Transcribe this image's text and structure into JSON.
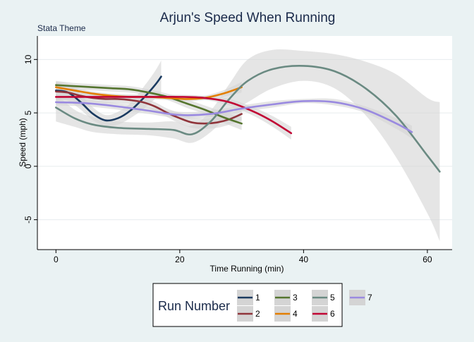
{
  "chart_data": {
    "type": "line",
    "title": "Arjun's Speed When Running",
    "subtitle": "Stata Theme",
    "xlabel": "Time Running (min)",
    "ylabel": "Speed (mph)",
    "xlim": [
      -3,
      64
    ],
    "ylim": [
      -7.8,
      12.2
    ],
    "xticks": [
      0,
      20,
      40,
      60
    ],
    "yticks": [
      -5,
      0,
      5,
      10
    ],
    "x_tick_labels": [
      "0",
      "20",
      "40",
      "60"
    ],
    "y_tick_labels": [
      "-5",
      "0",
      "5",
      "10"
    ],
    "grid": true,
    "legend": {
      "title": "Run Number",
      "placement": "bottom",
      "entries": [
        "1",
        "2",
        "3",
        "4",
        "5",
        "6",
        "7"
      ]
    },
    "colors": {
      "background": "#EAF2F3",
      "plot_background": "#FFFFFF",
      "band": "#D4D4D4",
      "gridline": "#E6ECEE",
      "title": "#1A2A4A"
    },
    "series": [
      {
        "name": "1",
        "color": "#1A3A60",
        "x": [
          0,
          2,
          4,
          6,
          8,
          10,
          12,
          14,
          16,
          17
        ],
        "y": [
          7.1,
          6.9,
          6.0,
          4.9,
          4.3,
          4.5,
          5.2,
          6.3,
          7.6,
          8.4
        ],
        "lower": [
          6.3,
          6.1,
          5.3,
          4.3,
          3.8,
          3.9,
          4.5,
          5.3,
          6.3,
          6.9
        ],
        "upper": [
          7.9,
          7.7,
          6.7,
          5.5,
          4.8,
          5.1,
          5.9,
          7.3,
          8.9,
          9.9
        ]
      },
      {
        "name": "2",
        "color": "#90353B",
        "x": [
          0,
          2,
          4,
          6,
          8,
          10,
          12,
          14,
          16,
          18,
          20,
          22,
          24,
          26,
          28,
          30
        ],
        "y": [
          7.0,
          6.9,
          6.6,
          6.4,
          6.3,
          6.3,
          6.2,
          6.0,
          5.6,
          5.0,
          4.5,
          4.1,
          4.0,
          4.1,
          4.4,
          4.9
        ],
        "lower": [
          6.2,
          6.3,
          6.1,
          6.0,
          5.9,
          5.9,
          5.8,
          5.6,
          5.2,
          4.6,
          4.0,
          3.6,
          3.5,
          3.6,
          3.9,
          4.3
        ],
        "upper": [
          7.8,
          7.5,
          7.1,
          6.8,
          6.7,
          6.7,
          6.6,
          6.4,
          6.0,
          5.4,
          5.0,
          4.6,
          4.5,
          4.6,
          4.9,
          5.5
        ]
      },
      {
        "name": "3",
        "color": "#55752F",
        "x": [
          0,
          3,
          6,
          9,
          12,
          15,
          18,
          21,
          24,
          27,
          30
        ],
        "y": [
          7.6,
          7.5,
          7.4,
          7.3,
          7.2,
          6.9,
          6.5,
          5.9,
          5.3,
          4.6,
          4.0
        ],
        "lower": [
          7.2,
          7.2,
          7.1,
          7.0,
          6.9,
          6.6,
          6.2,
          5.5,
          4.9,
          4.1,
          3.4
        ],
        "upper": [
          8.0,
          7.8,
          7.7,
          7.6,
          7.5,
          7.2,
          6.8,
          6.3,
          5.7,
          5.1,
          4.6
        ]
      },
      {
        "name": "4",
        "color": "#E37E00",
        "x": [
          0,
          3,
          6,
          9,
          12,
          15,
          18,
          21,
          24,
          27,
          30
        ],
        "y": [
          7.4,
          7.1,
          6.8,
          6.6,
          6.5,
          6.5,
          6.4,
          6.3,
          6.4,
          6.8,
          7.4
        ],
        "lower": [
          6.9,
          6.8,
          6.6,
          6.4,
          6.3,
          6.3,
          6.2,
          6.1,
          6.2,
          6.5,
          6.9
        ],
        "upper": [
          7.9,
          7.4,
          7.0,
          6.8,
          6.7,
          6.7,
          6.6,
          6.5,
          6.6,
          7.1,
          7.9
        ]
      },
      {
        "name": "5",
        "color": "#6A8A82",
        "x": [
          0,
          3,
          6,
          10,
          15,
          19,
          22,
          25,
          28,
          31,
          35,
          40,
          45,
          50,
          55,
          60,
          62
        ],
        "y": [
          5.5,
          4.5,
          3.9,
          3.6,
          3.5,
          3.4,
          3.0,
          4.2,
          6.3,
          8.0,
          9.1,
          9.4,
          8.9,
          7.3,
          4.7,
          1.0,
          -0.5
        ],
        "lower": [
          4.2,
          3.7,
          3.2,
          3.0,
          2.9,
          2.6,
          2.2,
          3.2,
          4.9,
          6.0,
          7.3,
          8.0,
          7.3,
          4.8,
          0.8,
          -4.4,
          -7.0
        ],
        "upper": [
          6.8,
          5.3,
          4.6,
          4.2,
          4.1,
          4.2,
          3.8,
          5.2,
          7.7,
          10.0,
          10.9,
          10.8,
          10.5,
          9.8,
          8.6,
          6.4,
          6.0
        ]
      },
      {
        "name": "6",
        "color": "#C10534",
        "x": [
          0,
          4,
          8,
          12,
          16,
          20,
          24,
          28,
          32,
          35,
          38
        ],
        "y": [
          6.5,
          6.5,
          6.5,
          6.5,
          6.5,
          6.5,
          6.4,
          6.0,
          5.1,
          4.2,
          3.1
        ],
        "lower": [
          6.2,
          6.3,
          6.3,
          6.3,
          6.3,
          6.3,
          6.2,
          5.7,
          4.7,
          3.7,
          2.5
        ],
        "upper": [
          6.8,
          6.7,
          6.7,
          6.7,
          6.7,
          6.7,
          6.6,
          6.3,
          5.5,
          4.7,
          3.7
        ]
      },
      {
        "name": "7",
        "color": "#9A8AE0",
        "x": [
          0,
          5,
          10,
          15,
          20,
          25,
          30,
          35,
          40,
          45,
          50,
          55,
          57.5
        ],
        "y": [
          6.0,
          5.9,
          5.6,
          5.2,
          4.8,
          4.9,
          5.4,
          5.8,
          6.1,
          6.0,
          5.3,
          4.0,
          3.2
        ],
        "lower": [
          5.7,
          5.6,
          5.3,
          4.9,
          4.5,
          4.6,
          5.1,
          5.5,
          5.9,
          5.7,
          5.0,
          3.5,
          2.6
        ],
        "upper": [
          6.3,
          6.2,
          5.9,
          5.5,
          5.1,
          5.2,
          5.7,
          6.1,
          6.3,
          6.3,
          5.6,
          4.5,
          3.8
        ]
      }
    ]
  }
}
